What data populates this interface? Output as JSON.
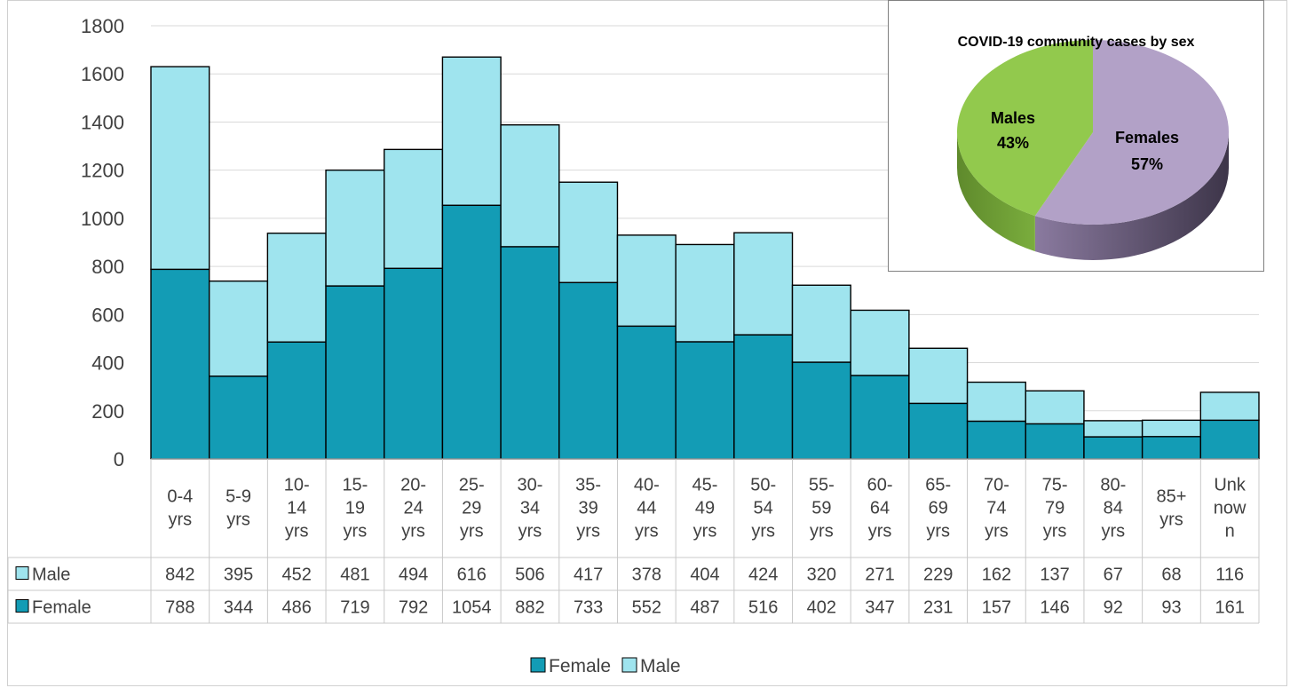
{
  "chart_data": [
    {
      "type": "bar",
      "stacked": true,
      "categories": [
        "0-4 yrs",
        "5-9 yrs",
        "10-14 yrs",
        "15-19 yrs",
        "20-24 yrs",
        "25-29 yrs",
        "30-34 yrs",
        "35-39 yrs",
        "40-44 yrs",
        "45-49 yrs",
        "50-54 yrs",
        "55-59 yrs",
        "60-64 yrs",
        "65-69 yrs",
        "70-74 yrs",
        "75-79 yrs",
        "80-84 yrs",
        "85+ yrs",
        "Unknown"
      ],
      "category_label_lines": [
        [
          "0-4",
          "yrs"
        ],
        [
          "5-9",
          "yrs"
        ],
        [
          "10-",
          "14",
          "yrs"
        ],
        [
          "15-",
          "19",
          "yrs"
        ],
        [
          "20-",
          "24",
          "yrs"
        ],
        [
          "25-",
          "29",
          "yrs"
        ],
        [
          "30-",
          "34",
          "yrs"
        ],
        [
          "35-",
          "39",
          "yrs"
        ],
        [
          "40-",
          "44",
          "yrs"
        ],
        [
          "45-",
          "49",
          "yrs"
        ],
        [
          "50-",
          "54",
          "yrs"
        ],
        [
          "55-",
          "59",
          "yrs"
        ],
        [
          "60-",
          "64",
          "yrs"
        ],
        [
          "65-",
          "69",
          "yrs"
        ],
        [
          "70-",
          "74",
          "yrs"
        ],
        [
          "75-",
          "79",
          "yrs"
        ],
        [
          "80-",
          "84",
          "yrs"
        ],
        [
          "85+",
          "yrs"
        ],
        [
          "Unk",
          "now",
          "n"
        ]
      ],
      "series": [
        {
          "name": "Female",
          "color": "#139cb5",
          "values": [
            788,
            344,
            486,
            719,
            792,
            1054,
            882,
            733,
            552,
            487,
            516,
            402,
            347,
            231,
            157,
            146,
            92,
            93,
            161
          ]
        },
        {
          "name": "Male",
          "color": "#9fe4ee",
          "values": [
            842,
            395,
            452,
            481,
            494,
            616,
            506,
            417,
            378,
            404,
            424,
            320,
            271,
            229,
            162,
            137,
            67,
            68,
            116
          ]
        }
      ],
      "data_table_rows": [
        "Male",
        "Female"
      ],
      "yticks": [
        0,
        200,
        400,
        600,
        800,
        1000,
        1200,
        1400,
        1600,
        1800
      ],
      "ylim": [
        0,
        1800
      ],
      "grid": true,
      "legend_position": "bottom",
      "title": "",
      "xlabel": "",
      "ylabel": ""
    },
    {
      "type": "pie",
      "title": "COVID-19 community cases by sex",
      "slices": [
        {
          "label": "Males",
          "percent_label": "43%",
          "value": 43,
          "color": "#92c94d"
        },
        {
          "label": "Females",
          "percent_label": "57%",
          "value": 57,
          "color": "#b2a1c7"
        }
      ]
    }
  ]
}
